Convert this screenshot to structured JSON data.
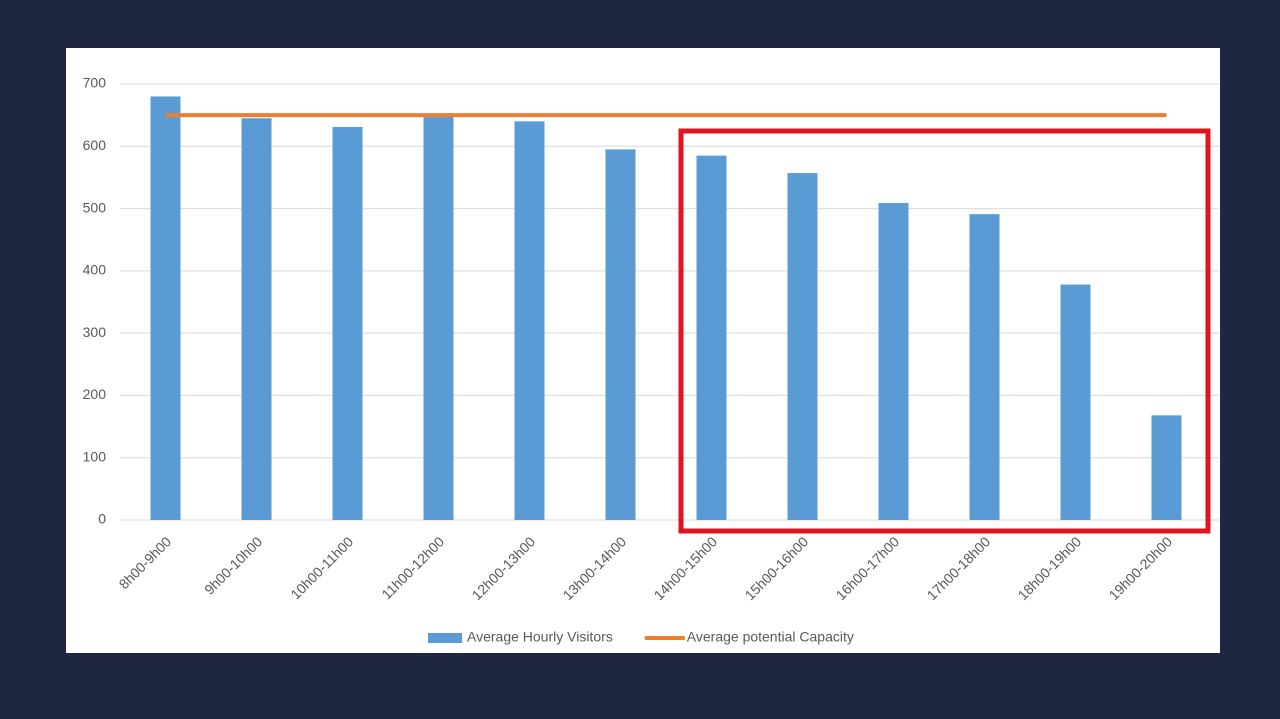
{
  "chart_data": {
    "type": "bar",
    "categories": [
      "8h00-9h00",
      "9h00-10h00",
      "10h00-11h00",
      "11h00-12h00",
      "12h00-13h00",
      "13h00-14h00",
      "14h00-15h00",
      "15h00-16h00",
      "16h00-17h00",
      "17h00-18h00",
      "18h00-19h00",
      "19h00-20h00"
    ],
    "series": [
      {
        "name": "Average Hourly Visitors",
        "type": "bar",
        "color": "#5b9bd5",
        "values": [
          680,
          645,
          631,
          648,
          640,
          595,
          585,
          557,
          509,
          491,
          378,
          168
        ]
      },
      {
        "name": "Average potential Capacity",
        "type": "line",
        "color": "#ed7d31",
        "values": [
          650,
          650,
          650,
          650,
          650,
          650,
          650,
          650,
          650,
          650,
          650,
          650
        ]
      }
    ],
    "ylim": [
      0,
      700
    ],
    "yticks": [
      0,
      100,
      200,
      300,
      400,
      500,
      600,
      700
    ],
    "grid": true
  }
}
